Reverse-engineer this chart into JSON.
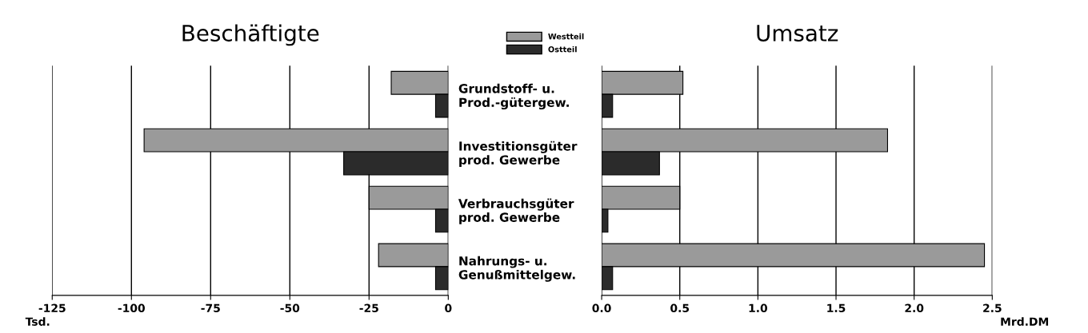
{
  "chart_data": [
    {
      "type": "bar",
      "orientation": "horizontal",
      "title": "Beschäftigte",
      "xlabel": "Tsd.",
      "categories": [
        null,
        null,
        null,
        null
      ],
      "series": [
        {
          "name": "Westteil",
          "color": "#9a9a9a",
          "values": [
            -18,
            -96,
            -25,
            -22
          ]
        },
        {
          "name": "Ostteil",
          "color": "#2b2b2b",
          "values": [
            -4,
            -33,
            -4,
            -4
          ]
        }
      ],
      "xlim": [
        -125,
        0
      ],
      "xticks": [
        -125,
        -100,
        -75,
        -50,
        -25,
        0
      ],
      "grid": "x",
      "legend": "top right",
      "tick_labels": "x"
    },
    {
      "type": "bar",
      "orientation": "horizontal",
      "title": "Umsatz",
      "xlabel": "Mrd.DM",
      "categories": [
        "Grundstoff- u.\nProd.-gütergew.",
        "Investitionsgüter\nprod. Gewerbe",
        "Verbrauchsgüter\nprod. Gewerbe",
        "Nahrungs- u.\nGenußmittelgew."
      ],
      "series": [
        {
          "color": "#9a9a9a",
          "values": [
            0.52,
            1.83,
            0.5,
            2.45
          ]
        },
        {
          "color": "#2b2b2b",
          "values": [
            0.07,
            0.37,
            0.04,
            0.07
          ]
        }
      ],
      "xlim": [
        0,
        2.5
      ],
      "xticks": [
        {
          "value": 0,
          "label": "0.0"
        },
        0.5,
        {
          "value": 1,
          "label": "1.0"
        },
        1.5,
        {
          "value": 2,
          "label": "2.0"
        },
        2.5
      ],
      "grid": "x"
    }
  ]
}
